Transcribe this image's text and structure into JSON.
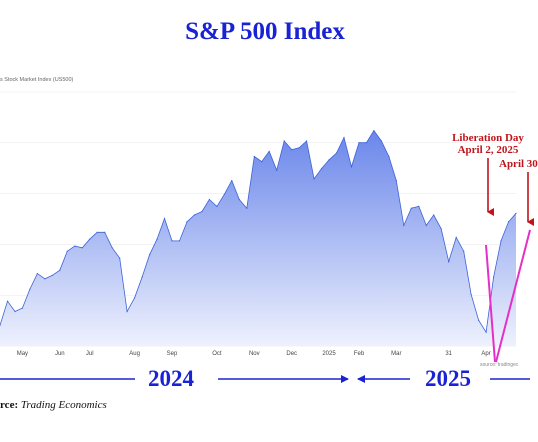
{
  "title": "S&P 500 Index",
  "series_label": "s Stock Market Index (US500)",
  "chart_data": {
    "type": "area",
    "x": [
      "Apr",
      "Apr",
      "Apr",
      "May",
      "May",
      "May",
      "May",
      "May",
      "Jun",
      "Jun",
      "Jun",
      "Jun",
      "Jul",
      "Jul",
      "Jul",
      "Jul",
      "Jul",
      "Jul",
      "Aug",
      "Aug",
      "Aug",
      "Aug",
      "Aug",
      "Sep",
      "Sep",
      "Sep",
      "Sep",
      "Sep",
      "Sep",
      "Oct",
      "Oct",
      "Oct",
      "Oct",
      "Oct",
      "Nov",
      "Nov",
      "Nov",
      "Nov",
      "Nov",
      "Dec",
      "Dec",
      "Dec",
      "Dec",
      "Dec",
      "2025",
      "2025",
      "2025",
      "2025",
      "Feb",
      "Feb",
      "Feb",
      "Feb",
      "Feb",
      "Mar",
      "Mar",
      "Mar",
      "Mar",
      "Mar",
      "Mar",
      "Mar",
      "31",
      "31",
      "31",
      "31",
      "31",
      "Apr",
      "Apr",
      "Apr",
      "Apr",
      "Apr"
    ],
    "values": [
      5020,
      5160,
      5100,
      5120,
      5230,
      5320,
      5290,
      5310,
      5340,
      5450,
      5480,
      5470,
      5520,
      5560,
      5560,
      5470,
      5410,
      5100,
      5180,
      5300,
      5430,
      5520,
      5640,
      5510,
      5510,
      5620,
      5660,
      5680,
      5750,
      5710,
      5780,
      5860,
      5750,
      5700,
      6000,
      5970,
      6030,
      5920,
      6090,
      6040,
      6050,
      6090,
      5870,
      5930,
      5980,
      6020,
      6110,
      5940,
      6080,
      6080,
      6150,
      6090,
      6000,
      5860,
      5600,
      5700,
      5710,
      5600,
      5660,
      5580,
      5390,
      5530,
      5450,
      5200,
      5050,
      4980,
      5300,
      5510,
      5620,
      5670
    ],
    "categories": [
      "May",
      "Jun",
      "Jul",
      "Aug",
      "Sep",
      "Oct",
      "Nov",
      "Dec",
      "2025",
      "Feb",
      "Mar",
      "31",
      "Apr"
    ],
    "ylim": [
      4900,
      6200
    ],
    "grid": true,
    "xlabel": "",
    "ylabel": "",
    "annotations": [
      {
        "text": "Liberation Day",
        "text2": "April 2, 2025"
      },
      {
        "text": "April 30",
        "text2": ""
      }
    ]
  },
  "years": {
    "left": "2024",
    "right": "2025"
  },
  "source": {
    "label": "rce:",
    "name": "Trading Economics"
  },
  "chart_source": "source: tradingec",
  "colors": {
    "title": "#1a23d4",
    "area_top": "#6a86ea",
    "area_bottom": "#eef1fd",
    "line": "#3d63d8",
    "annotation": "#c0141c",
    "trend": "#e52fc6",
    "year_arrows": "#1a23d4"
  }
}
